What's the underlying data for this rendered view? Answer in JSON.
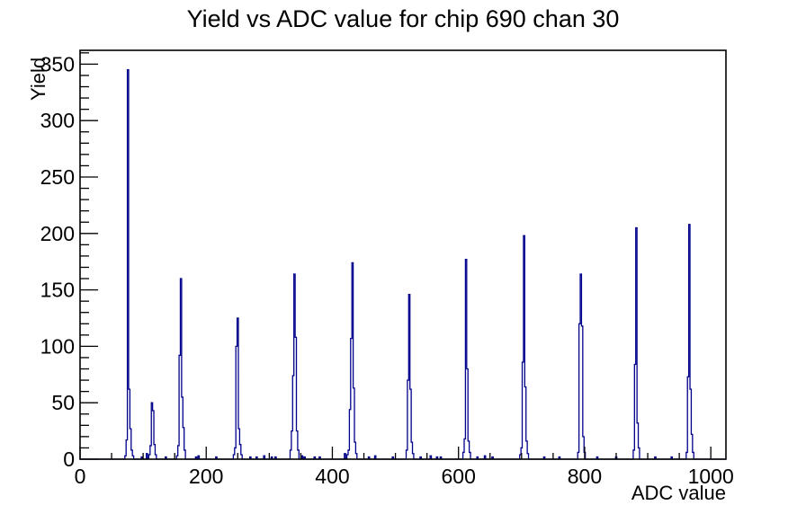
{
  "chart_data": {
    "type": "bar",
    "subtype": "histogram-step-outline",
    "title": "Yield vs ADC value for chip 690 chan 30",
    "xlabel": "ADC value",
    "ylabel": "Yield",
    "xlim": [
      0,
      1024
    ],
    "ylim": [
      0,
      362.25
    ],
    "x_major_ticks": [
      0,
      200,
      400,
      600,
      800,
      1000
    ],
    "x_minor_step": 50,
    "y_major_ticks": [
      0,
      50,
      100,
      150,
      200,
      250,
      300,
      350
    ],
    "y_minor_step": 10,
    "grid": false,
    "legend": null,
    "bin_width": 2,
    "line_color": "#00008b",
    "axis_color": "#000000",
    "background_color": "#ffffff",
    "peaks": [
      {
        "adc": 76,
        "yield": 345
      },
      {
        "adc": 114,
        "yield": 50
      },
      {
        "adc": 160,
        "yield": 160
      },
      {
        "adc": 250,
        "yield": 125
      },
      {
        "adc": 340,
        "yield": 164
      },
      {
        "adc": 432,
        "yield": 174
      },
      {
        "adc": 522,
        "yield": 146
      },
      {
        "adc": 612,
        "yield": 177
      },
      {
        "adc": 704,
        "yield": 198
      },
      {
        "adc": 794,
        "yield": 164
      },
      {
        "adc": 882,
        "yield": 205
      },
      {
        "adc": 966,
        "yield": 208
      }
    ],
    "bins": [
      [
        72,
        3
      ],
      [
        74,
        17
      ],
      [
        76,
        345
      ],
      [
        78,
        62
      ],
      [
        80,
        27
      ],
      [
        82,
        8
      ],
      [
        84,
        3
      ],
      [
        98,
        2
      ],
      [
        106,
        5
      ],
      [
        110,
        4
      ],
      [
        112,
        12
      ],
      [
        114,
        50
      ],
      [
        116,
        43
      ],
      [
        118,
        13
      ],
      [
        120,
        4
      ],
      [
        136,
        2
      ],
      [
        154,
        3
      ],
      [
        156,
        12
      ],
      [
        158,
        92
      ],
      [
        160,
        160
      ],
      [
        162,
        55
      ],
      [
        164,
        28
      ],
      [
        166,
        8
      ],
      [
        184,
        2
      ],
      [
        188,
        3
      ],
      [
        216,
        2
      ],
      [
        244,
        4
      ],
      [
        246,
        10
      ],
      [
        248,
        100
      ],
      [
        250,
        125
      ],
      [
        252,
        27
      ],
      [
        254,
        13
      ],
      [
        256,
        4
      ],
      [
        270,
        2
      ],
      [
        280,
        2
      ],
      [
        292,
        3
      ],
      [
        304,
        2
      ],
      [
        310,
        2
      ],
      [
        334,
        8
      ],
      [
        336,
        25
      ],
      [
        338,
        74
      ],
      [
        340,
        164
      ],
      [
        342,
        108
      ],
      [
        344,
        25
      ],
      [
        346,
        8
      ],
      [
        352,
        3
      ],
      [
        356,
        2
      ],
      [
        372,
        2
      ],
      [
        380,
        2
      ],
      [
        420,
        5
      ],
      [
        424,
        4
      ],
      [
        426,
        8
      ],
      [
        428,
        44
      ],
      [
        430,
        107
      ],
      [
        432,
        174
      ],
      [
        434,
        63
      ],
      [
        436,
        15
      ],
      [
        438,
        5
      ],
      [
        458,
        2
      ],
      [
        468,
        3
      ],
      [
        496,
        2
      ],
      [
        518,
        8
      ],
      [
        520,
        70
      ],
      [
        522,
        146
      ],
      [
        524,
        62
      ],
      [
        526,
        15
      ],
      [
        528,
        5
      ],
      [
        540,
        2
      ],
      [
        556,
        3
      ],
      [
        566,
        2
      ],
      [
        572,
        2
      ],
      [
        608,
        6
      ],
      [
        610,
        18
      ],
      [
        612,
        177
      ],
      [
        614,
        80
      ],
      [
        616,
        16
      ],
      [
        618,
        6
      ],
      [
        630,
        2
      ],
      [
        642,
        3
      ],
      [
        654,
        2
      ],
      [
        698,
        4
      ],
      [
        700,
        10
      ],
      [
        702,
        86
      ],
      [
        704,
        198
      ],
      [
        706,
        64
      ],
      [
        708,
        16
      ],
      [
        710,
        5
      ],
      [
        736,
        2
      ],
      [
        760,
        2
      ],
      [
        790,
        6
      ],
      [
        792,
        120
      ],
      [
        794,
        164
      ],
      [
        796,
        118
      ],
      [
        798,
        20
      ],
      [
        800,
        6
      ],
      [
        820,
        2
      ],
      [
        850,
        2
      ],
      [
        878,
        8
      ],
      [
        880,
        84
      ],
      [
        882,
        205
      ],
      [
        884,
        32
      ],
      [
        886,
        10
      ],
      [
        912,
        2
      ],
      [
        938,
        2
      ],
      [
        962,
        6
      ],
      [
        964,
        73
      ],
      [
        966,
        208
      ],
      [
        968,
        62
      ],
      [
        970,
        22
      ],
      [
        972,
        6
      ]
    ]
  }
}
